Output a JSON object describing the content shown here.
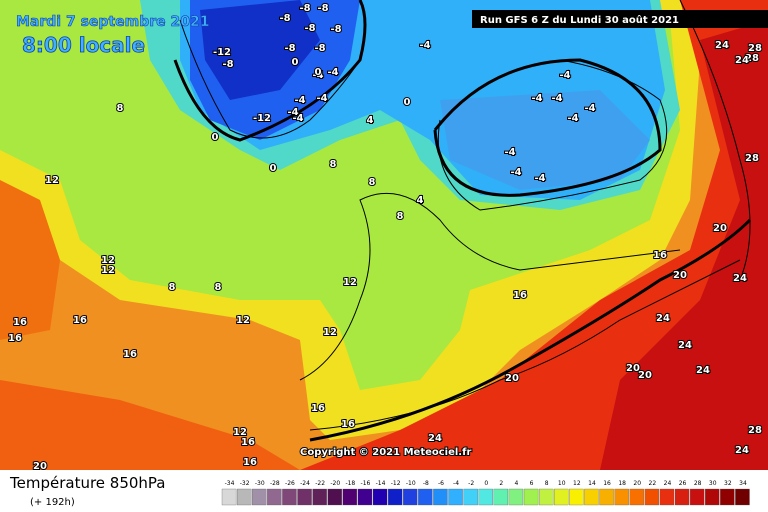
{
  "header": {
    "date": "Mardi 7 septembre 2021",
    "time": "8:00 locale",
    "run": "Run GFS 6 Z du Lundi 30 août 2021"
  },
  "copyright": "Copyright © 2021 Meteociel.fr",
  "footer": {
    "title": "Température 850hPa",
    "lead": "(+ 192h)"
  },
  "legend": {
    "values": [
      -34,
      -32,
      -30,
      -28,
      -26,
      -24,
      -22,
      -20,
      -18,
      -16,
      -14,
      -12,
      -10,
      -8,
      -6,
      -4,
      -2,
      0,
      2,
      4,
      6,
      8,
      10,
      12,
      14,
      16,
      18,
      20,
      22,
      24,
      26,
      28,
      30,
      32,
      34
    ],
    "colors": [
      "#d8d8d8",
      "#b8b8b8",
      "#a090a8",
      "#906890",
      "#804878",
      "#703068",
      "#602058",
      "#501050",
      "#500070",
      "#400090",
      "#2000b0",
      "#1020c8",
      "#2040e0",
      "#2060f0",
      "#2090f8",
      "#30b0ff",
      "#40d0f8",
      "#50e8e0",
      "#60f0b0",
      "#80f080",
      "#a0f050",
      "#c0f040",
      "#e0f020",
      "#f8f000",
      "#f8d000",
      "#f8b000",
      "#f89000",
      "#f87000",
      "#f05000",
      "#e83010",
      "#d82010",
      "#c81010",
      "#b00808",
      "#900000",
      "#700000"
    ]
  },
  "map_labels": [
    "-8",
    "-8",
    "-8",
    "-8",
    "-8",
    "-12",
    "-8",
    "-8",
    "-8",
    "-4",
    "0",
    "-4",
    "-4",
    "-4",
    "-12",
    "0",
    "-4",
    "-4",
    "0",
    "-4",
    "-4",
    "-4",
    "-4",
    "-4",
    "-4",
    "-4",
    "-4",
    "-4",
    "0",
    "0",
    "4",
    "4",
    "8",
    "8",
    "8",
    "8",
    "8",
    "8",
    "12",
    "12",
    "12",
    "12",
    "12",
    "12",
    "16",
    "16",
    "16",
    "16",
    "16",
    "16",
    "16",
    "16",
    "20",
    "20",
    "20",
    "20",
    "20",
    "24",
    "24",
    "24",
    "24",
    "24",
    "28",
    "28",
    "28",
    "24",
    "24",
    "28",
    "28",
    "12",
    "16",
    "16",
    "20",
    "24"
  ]
}
